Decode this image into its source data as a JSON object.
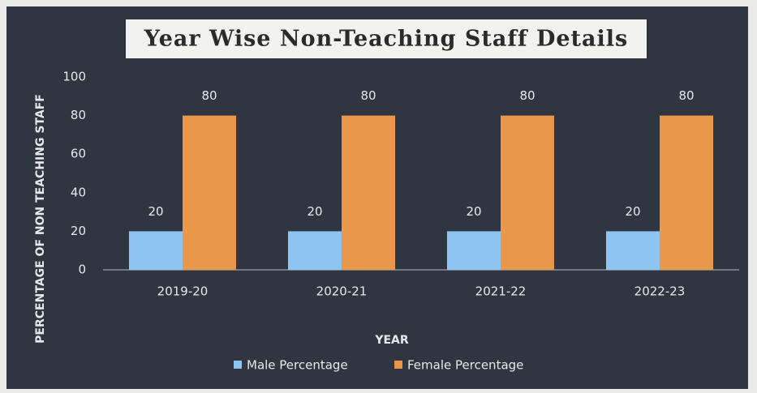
{
  "chart_data": {
    "type": "bar",
    "title": "Year Wise Non-Teaching Staff Details",
    "x_label": "YEAR",
    "y_label": "PERCENTAGE OF NON TEACHING STAFF",
    "categories": [
      "2019-20",
      "2020-21",
      "2021-22",
      "2022-23"
    ],
    "series": [
      {
        "name": "Male Percentage",
        "color": "#8ec4f2",
        "values": [
          20,
          20,
          20,
          20
        ]
      },
      {
        "name": "Female Percentage",
        "color": "#e9984a",
        "values": [
          80,
          80,
          80,
          80
        ]
      }
    ],
    "ylim": [
      0,
      100
    ],
    "yticks": [
      0,
      20,
      40,
      60,
      80,
      100
    ],
    "grid": false,
    "legend": "bottom"
  }
}
